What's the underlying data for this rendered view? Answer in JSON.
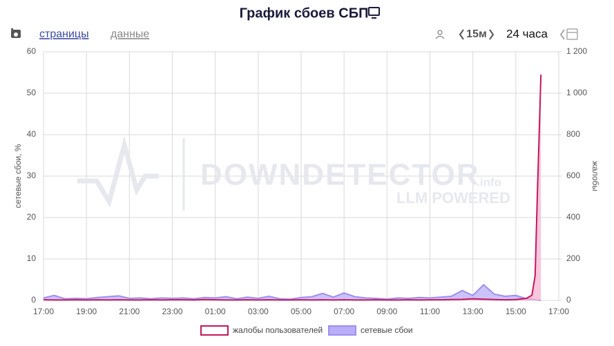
{
  "chart_data": {
    "type": "area",
    "title": "График сбоев СБП",
    "toolbar": {
      "pages": "страницы",
      "data": "данные",
      "step": "15м",
      "range": "24 часа"
    },
    "watermark": {
      "brand": "DOWNDETECTOR",
      "suffix": ".info",
      "tagline": "LLM POWERED"
    },
    "ylabel": "сетевые сбои, %",
    "y2label": "жалобы",
    "xlim": [
      0,
      24
    ],
    "xticks": [
      {
        "value": 0,
        "label": "17:00"
      },
      {
        "value": 2,
        "label": "19:00"
      },
      {
        "value": 4,
        "label": "21:00"
      },
      {
        "value": 6,
        "label": "23:00"
      },
      {
        "value": 8,
        "label": "01:00"
      },
      {
        "value": 10,
        "label": "03:00"
      },
      {
        "value": 12,
        "label": "05:00"
      },
      {
        "value": 14,
        "label": "07:00"
      },
      {
        "value": 16,
        "label": "09:00"
      },
      {
        "value": 18,
        "label": "11:00"
      },
      {
        "value": 20,
        "label": "13:00"
      },
      {
        "value": 22,
        "label": "15:00"
      },
      {
        "value": 24,
        "label": "17:00"
      }
    ],
    "ylim": [
      0,
      60
    ],
    "yticks": [
      0,
      10,
      20,
      30,
      40,
      50,
      60
    ],
    "y2lim": [
      0,
      1200
    ],
    "y2ticks": [
      0,
      200,
      400,
      600,
      800,
      {
        "value": 1000,
        "label": "1 000"
      },
      {
        "value": 1200,
        "label": "1 200"
      }
    ],
    "grid": true,
    "legend": "bottom",
    "x": [
      0,
      0.5,
      1,
      1.5,
      2,
      2.5,
      3,
      3.5,
      4,
      4.5,
      5,
      5.5,
      6,
      6.5,
      7,
      7.5,
      8,
      8.5,
      9,
      9.5,
      10,
      10.5,
      11,
      11.5,
      12,
      12.5,
      13,
      13.5,
      14,
      14.5,
      15,
      15.5,
      16,
      16.5,
      17,
      17.5,
      18,
      18.5,
      19,
      19.5,
      20,
      20.5,
      21,
      21.5,
      22,
      22.5,
      22.75,
      22.9,
      23.0,
      23.17
    ],
    "series": [
      {
        "name": "жалобы пользователей",
        "color": "#c2185b",
        "fill": "#f6b3d2",
        "axis": "y2",
        "values": [
          3,
          2,
          2,
          3,
          2,
          3,
          2,
          3,
          2,
          2,
          3,
          2,
          3,
          3,
          2,
          4,
          3,
          2,
          2,
          3,
          2,
          3,
          2,
          2,
          3,
          2,
          3,
          2,
          3,
          2,
          2,
          3,
          2,
          2,
          3,
          2,
          3,
          3,
          4,
          5,
          8,
          6,
          4,
          3,
          4,
          10,
          25,
          120,
          500,
          1090
        ]
      },
      {
        "name": "сетевые сбои",
        "color": "#9d8ff0",
        "fill": "#b9aef7",
        "axis": "y",
        "values": [
          0.6,
          1.2,
          0.4,
          0.5,
          0.4,
          0.7,
          0.9,
          1.1,
          0.5,
          0.6,
          0.4,
          0.6,
          0.5,
          0.6,
          0.4,
          0.7,
          0.6,
          0.9,
          0.4,
          0.8,
          0.5,
          1.0,
          0.4,
          0.3,
          0.7,
          0.9,
          1.7,
          0.8,
          1.8,
          0.9,
          0.6,
          0.5,
          0.3,
          0.6,
          0.5,
          0.7,
          0.6,
          0.8,
          1.0,
          2.4,
          1.2,
          3.8,
          1.5,
          1.0,
          1.2,
          0.4,
          0.3,
          0.2,
          0.1,
          0
        ]
      }
    ]
  }
}
